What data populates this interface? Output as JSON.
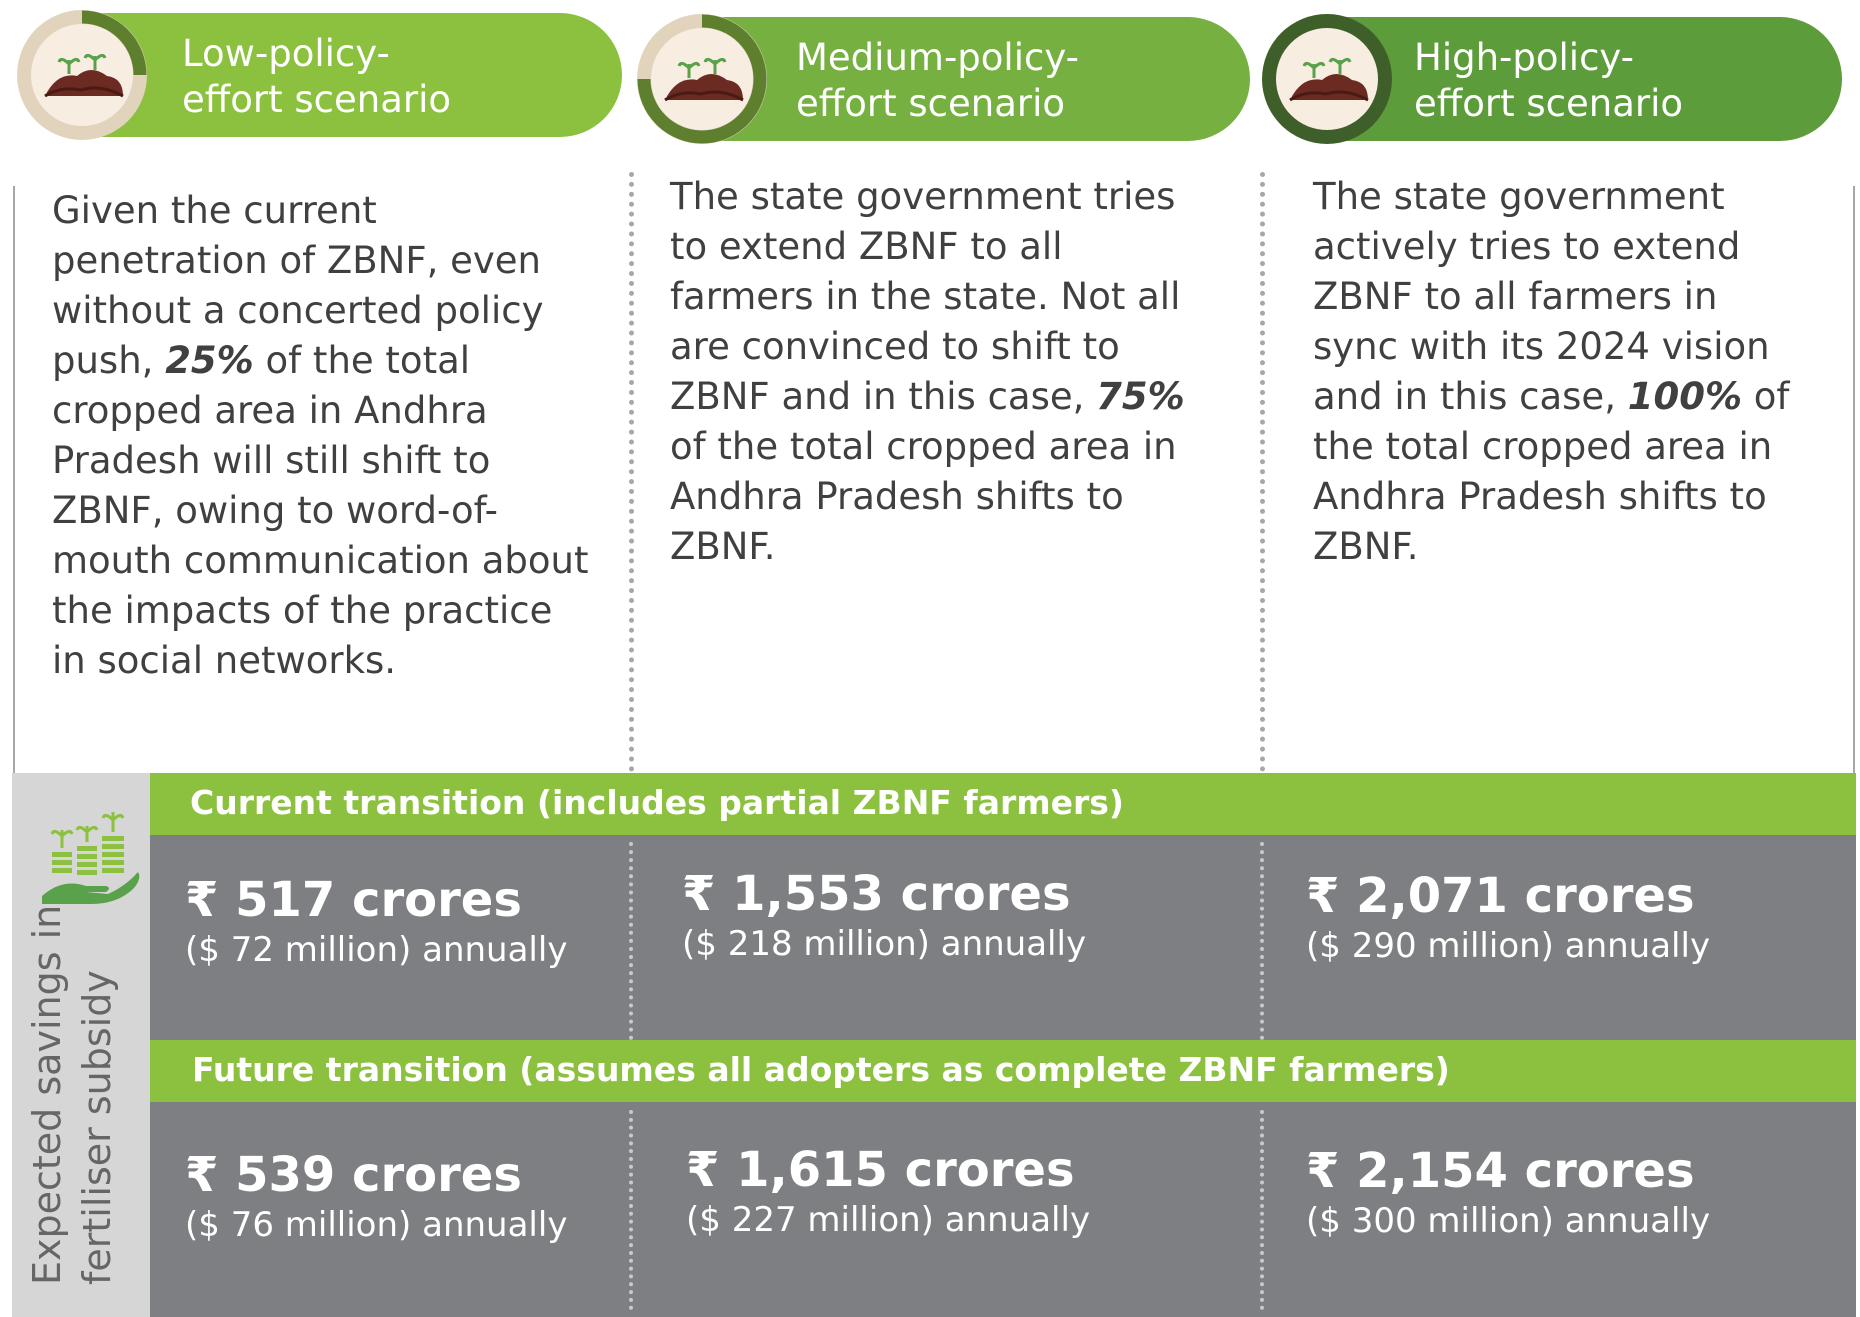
{
  "scenarios": [
    {
      "title": "Low-policy-\neffort scenario",
      "icon": "soil-seedling-icon",
      "description_html": "Given the current penetration of ZBNF, even without a concerted policy push, <b>25%</b> of the total cropped area in Andhra Pradesh will still shift to ZBNF, owing to word-of-mouth communication about the impacts of the practice in social networks."
    },
    {
      "title": "Medium-policy-\neffort scenario",
      "icon": "soil-seedling-icon",
      "description_html": "The state government tries to extend ZBNF to all farmers in the state. Not all are convinced to shift to ZBNF and in this case, <b>75%</b> of the total cropped area in Andhra Pradesh shifts to ZBNF."
    },
    {
      "title": "High-policy-\neffort scenario",
      "icon": "soil-seedling-icon",
      "description_html": "The state government actively tries to extend ZBNF to all farmers in sync with its 2024 vision and in this case, <b>100%</b> of the total cropped area in Andhra Pradesh shifts to ZBNF."
    }
  ],
  "savings": {
    "side_label": "Expected savings in\nfertiliser subsidy",
    "side_icon": "hand-coins-seedling-icon",
    "current": {
      "heading": "Current transition (includes partial ZBNF farmers)",
      "values": [
        {
          "amount": "₹ 517 crores",
          "usd": "($ 72 million) annually"
        },
        {
          "amount": "₹ 1,553 crores",
          "usd": "($ 218 million) annually"
        },
        {
          "amount": "₹ 2,071 crores",
          "usd": "($ 290 million) annually"
        }
      ]
    },
    "future": {
      "heading": "Future transition (assumes all adopters as complete ZBNF farmers)",
      "values": [
        {
          "amount": "₹ 539 crores",
          "usd": "($ 76 million) annually"
        },
        {
          "amount": "₹ 1,615 crores",
          "usd": "($ 227 million) annually"
        },
        {
          "amount": "₹ 2,154 crores",
          "usd": "($ 300 million) annually"
        }
      ]
    }
  },
  "colors": {
    "green_low": "#8cc13f",
    "green_mid": "#76b041",
    "green_high": "#5d9c3a",
    "grey_panel": "#7e7f82",
    "soil": "#6b2a22"
  }
}
